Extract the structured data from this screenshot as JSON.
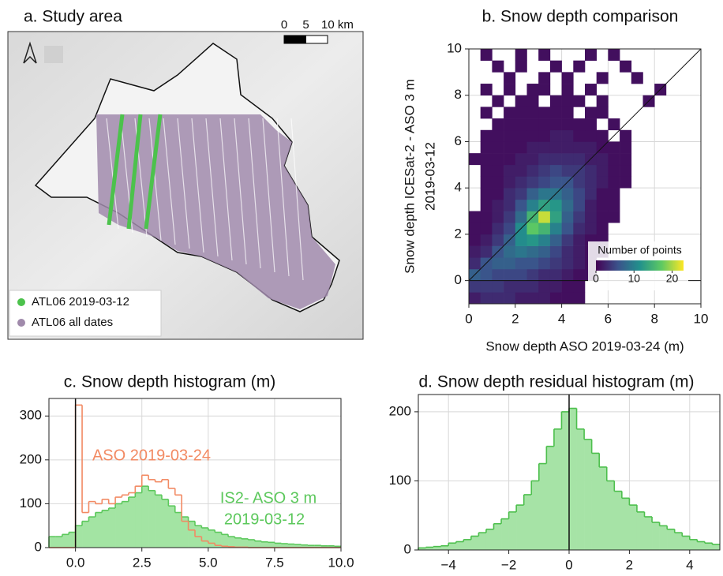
{
  "chart_data": [
    {
      "type": "map",
      "title": "a. Study area",
      "scale_ticks": [
        0,
        5,
        {
          "value": 10,
          "label": "10 km"
        }
      ],
      "series": [
        {
          "name": "ATL06 2019-03-12",
          "color": "#4cc24c"
        },
        {
          "name": "ATL06 all dates",
          "color": "#a08aab"
        }
      ]
    },
    {
      "type": "heatmap",
      "title": "b. Snow depth comparison",
      "x_label": "Snow depth ASO 2019-03-24 (m)",
      "y_label": [
        "Snow depth ICESat-2 - ASO 3 m",
        "2019-03-12"
      ],
      "xlim": [
        0,
        10
      ],
      "ylim": [
        -1,
        10
      ],
      "xticks": [
        0,
        2,
        4,
        6,
        8,
        10
      ],
      "yticks": [
        0,
        2,
        4,
        6,
        8,
        10
      ],
      "grid": true,
      "identity_line": true,
      "hlines": [
        0
      ],
      "x_bins": [
        0,
        0.5,
        1,
        1.5,
        2,
        2.5,
        3,
        3.5,
        4,
        4.5,
        5,
        5.5,
        6,
        6.5,
        7,
        7.5,
        8,
        8.5,
        9,
        9.5,
        10
      ],
      "y_bins": [
        -1,
        -0.5,
        0,
        0.5,
        1,
        1.5,
        2,
        2.5,
        3,
        3.5,
        4,
        4.5,
        5,
        5.5,
        6,
        6.5,
        7,
        7.5,
        8,
        8.5,
        9,
        9.5,
        10
      ],
      "z": [
        [
          2,
          3,
          3,
          3,
          2,
          2,
          2,
          1,
          1,
          1,
          null,
          null,
          null,
          null,
          null,
          null,
          null,
          null,
          null,
          null
        ],
        [
          4,
          4,
          4,
          3,
          3,
          3,
          2,
          2,
          1,
          1,
          null,
          null,
          null,
          null,
          null,
          null,
          null,
          null,
          null,
          null
        ],
        [
          7,
          6,
          5,
          5,
          5,
          4,
          3,
          3,
          2,
          1,
          1,
          null,
          null,
          null,
          null,
          null,
          null,
          null,
          null,
          null
        ],
        [
          3,
          6,
          7,
          7,
          6,
          6,
          5,
          4,
          3,
          2,
          1,
          null,
          null,
          null,
          null,
          null,
          null,
          null,
          null,
          null
        ],
        [
          2,
          3,
          6,
          8,
          9,
          8,
          7,
          5,
          3,
          2,
          1,
          1,
          null,
          null,
          null,
          null,
          null,
          null,
          null,
          null
        ],
        [
          1,
          2,
          4,
          7,
          11,
          12,
          10,
          7,
          4,
          2,
          1,
          1,
          null,
          null,
          null,
          null,
          null,
          null,
          null,
          null
        ],
        [
          1,
          1,
          3,
          5,
          11,
          17,
          15,
          10,
          6,
          3,
          2,
          1,
          null,
          null,
          null,
          null,
          null,
          null,
          null,
          null
        ],
        [
          1,
          1,
          2,
          4,
          8,
          15,
          21,
          13,
          7,
          4,
          2,
          1,
          1,
          null,
          null,
          null,
          null,
          null,
          null,
          null
        ],
        [
          null,
          1,
          2,
          3,
          6,
          10,
          13,
          12,
          8,
          5,
          2,
          1,
          1,
          null,
          null,
          null,
          null,
          null,
          null,
          null
        ],
        [
          null,
          1,
          1,
          3,
          4,
          7,
          9,
          9,
          7,
          5,
          3,
          1,
          1,
          null,
          null,
          null,
          null,
          null,
          null,
          null
        ],
        [
          null,
          1,
          1,
          2,
          3,
          4,
          5,
          6,
          6,
          4,
          3,
          2,
          1,
          1,
          null,
          null,
          null,
          null,
          null,
          null
        ],
        [
          null,
          1,
          1,
          2,
          2,
          3,
          4,
          5,
          4,
          4,
          3,
          2,
          1,
          1,
          null,
          null,
          null,
          null,
          null,
          null
        ],
        [
          1,
          1,
          1,
          1,
          2,
          2,
          3,
          3,
          3,
          3,
          2,
          2,
          1,
          1,
          null,
          null,
          null,
          null,
          null,
          null
        ],
        [
          null,
          1,
          1,
          1,
          1,
          2,
          2,
          2,
          2,
          2,
          2,
          1,
          1,
          1,
          null,
          null,
          null,
          null,
          null,
          null
        ],
        [
          null,
          1,
          1,
          1,
          1,
          1,
          1,
          2,
          2,
          1,
          1,
          1,
          null,
          1,
          null,
          null,
          null,
          null,
          null,
          null
        ],
        [
          null,
          null,
          1,
          1,
          1,
          1,
          1,
          1,
          1,
          1,
          1,
          null,
          1,
          null,
          null,
          null,
          null,
          null,
          null,
          null
        ],
        [
          null,
          1,
          null,
          1,
          1,
          1,
          1,
          1,
          1,
          null,
          1,
          1,
          null,
          null,
          null,
          null,
          null,
          null,
          null,
          null
        ],
        [
          null,
          null,
          1,
          null,
          1,
          1,
          null,
          1,
          1,
          1,
          null,
          1,
          null,
          null,
          null,
          1,
          null,
          null,
          null,
          null
        ],
        [
          null,
          1,
          null,
          1,
          null,
          1,
          1,
          null,
          1,
          null,
          1,
          null,
          null,
          null,
          null,
          null,
          1,
          null,
          null,
          null
        ],
        [
          null,
          null,
          null,
          1,
          null,
          null,
          1,
          null,
          1,
          null,
          null,
          1,
          null,
          null,
          1,
          null,
          null,
          null,
          null,
          null
        ],
        [
          null,
          null,
          1,
          null,
          1,
          null,
          null,
          1,
          null,
          1,
          null,
          null,
          null,
          1,
          null,
          null,
          null,
          null,
          null,
          null
        ],
        [
          null,
          1,
          null,
          null,
          1,
          null,
          1,
          null,
          null,
          null,
          1,
          null,
          1,
          null,
          null,
          null,
          null,
          null,
          null,
          null
        ]
      ],
      "colorbar": {
        "label": "Number of points",
        "lim": [
          0,
          23
        ],
        "ticks": [
          0,
          10,
          20
        ]
      }
    },
    {
      "type": "histogram",
      "title": "c. Snow depth histogram (m)",
      "xlim": [
        -1,
        10
      ],
      "ylim": [
        0,
        340
      ],
      "xticks": [
        {
          "value": 0,
          "label": "0.0"
        },
        2.5,
        {
          "value": 5,
          "label": "5.0"
        },
        7.5,
        {
          "value": 10,
          "label": "10.0"
        }
      ],
      "yticks": [
        0,
        100,
        200,
        300
      ],
      "grid": true,
      "vlines": [
        0
      ],
      "bins": [
        -1,
        -0.75,
        -0.5,
        -0.25,
        0,
        0.25,
        0.5,
        0.75,
        1,
        1.25,
        1.5,
        1.75,
        2,
        2.25,
        2.5,
        2.75,
        3,
        3.25,
        3.5,
        3.75,
        4,
        4.25,
        4.5,
        4.75,
        5,
        5.25,
        5.5,
        5.75,
        6,
        6.25,
        6.5,
        6.75,
        7,
        7.25,
        7.5,
        7.75,
        8,
        8.25,
        8.5,
        8.75,
        9,
        9.25,
        9.5,
        9.75,
        10
      ],
      "series": [
        {
          "color": "#5cc85c",
          "fill": "#a3e4a3",
          "style": "filled",
          "values": [
            25,
            25,
            30,
            35,
            50,
            60,
            70,
            80,
            85,
            90,
            100,
            105,
            115,
            125,
            140,
            130,
            120,
            110,
            95,
            80,
            70,
            60,
            50,
            45,
            40,
            35,
            30,
            25,
            22,
            20,
            18,
            15,
            13,
            12,
            10,
            9,
            8,
            7,
            6,
            5,
            5,
            4,
            4,
            3
          ]
        },
        {
          "color": "#f28a63",
          "style": "step",
          "values": [
            0,
            0,
            0,
            0,
            325,
            80,
            105,
            100,
            110,
            100,
            115,
            120,
            125,
            140,
            165,
            155,
            150,
            155,
            135,
            120,
            60,
            40,
            25,
            15,
            10,
            5,
            3,
            2,
            1,
            1,
            0,
            0,
            0,
            0,
            0,
            0,
            0,
            0,
            0,
            0,
            0,
            0,
            0,
            0
          ]
        }
      ],
      "annotations": [
        {
          "text": "ASO 2019-03-24",
          "color": "#f28a63"
        },
        {
          "text": "IS2- ASO 3 m",
          "color": "#5cc85c"
        },
        {
          "text": "2019-03-12",
          "color": "#5cc85c"
        }
      ]
    },
    {
      "type": "histogram",
      "title": "d. Snow depth residual histogram (m)",
      "xlim": [
        -5,
        5
      ],
      "ylim": [
        0,
        225
      ],
      "xticks": [
        {
          "value": -4,
          "label": "−4"
        },
        {
          "value": -2,
          "label": "−2"
        },
        0,
        2,
        4
      ],
      "yticks": [
        0,
        100,
        200
      ],
      "grid": true,
      "vlines": [
        0
      ],
      "bins": [
        -5,
        -4.75,
        -4.5,
        -4.25,
        -4,
        -3.75,
        -3.5,
        -3.25,
        -3,
        -2.75,
        -2.5,
        -2.25,
        -2,
        -1.75,
        -1.5,
        -1.25,
        -1,
        -0.75,
        -0.5,
        -0.25,
        0,
        0.25,
        0.5,
        0.75,
        1,
        1.25,
        1.5,
        1.75,
        2,
        2.25,
        2.5,
        2.75,
        3,
        3.25,
        3.5,
        3.75,
        4,
        4.25,
        4.5,
        4.75,
        5
      ],
      "series": [
        {
          "color": "#4dbf4d",
          "fill": "#a6e3a6",
          "style": "filled",
          "values": [
            3,
            4,
            5,
            6,
            10,
            12,
            15,
            20,
            25,
            30,
            38,
            45,
            55,
            65,
            80,
            100,
            125,
            150,
            175,
            200,
            205,
            175,
            160,
            140,
            120,
            100,
            85,
            75,
            65,
            55,
            48,
            40,
            35,
            30,
            25,
            20,
            15,
            12,
            10,
            8
          ]
        }
      ]
    }
  ]
}
